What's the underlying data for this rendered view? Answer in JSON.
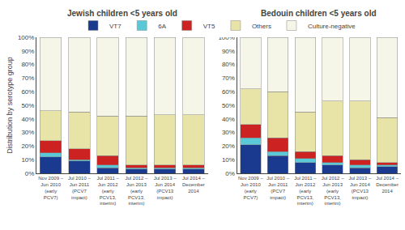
{
  "chart_data": [
    {
      "type": "bar",
      "stacked": true,
      "grid": false,
      "title": "Jewish children <5 years old",
      "ylabel": "Distribution by serotype group",
      "categories": [
        "Nov 2009 –\nJun 2010\n(early\nPCV7)",
        "Jul 2010 –\nJun 2011\n(PCV7\nimpact)",
        "Jul 2011 –\nJun 2012\n(early\nPCV13,\ninterim)",
        "Jul 2012 –\nJun 2013\n(early\nPCV13,\ninterim)",
        "Jul 2013 –\nJun 2014\n(PCV13\nimpact)",
        "Jul 2014 –\nDecember\n2014"
      ],
      "series": [
        {
          "name": "VT7",
          "color": "#1a3a8f",
          "values": [
            12,
            9,
            4,
            3,
            3,
            3
          ]
        },
        {
          "name": "6A",
          "color": "#5bc8d8",
          "values": [
            3,
            1,
            2,
            1,
            1,
            1
          ]
        },
        {
          "name": "VT5",
          "color": "#cc2222",
          "values": [
            9,
            8,
            7,
            2,
            2,
            2
          ]
        },
        {
          "name": "Others",
          "color": "#e8e4a8",
          "values": [
            22,
            27,
            29,
            36,
            37,
            37
          ]
        },
        {
          "name": "Culture-negative",
          "color": "#f5f5e8",
          "values": [
            54,
            55,
            58,
            58,
            57,
            57
          ]
        }
      ],
      "ylim": [
        0,
        100
      ],
      "yticks": [
        {
          "value": 0,
          "label": "0%"
        },
        {
          "value": 10,
          "label": "10%"
        },
        {
          "value": 20,
          "label": "20%"
        },
        {
          "value": 30,
          "label": "30%"
        },
        {
          "value": 40,
          "label": "40%"
        },
        {
          "value": 50,
          "label": "50%"
        },
        {
          "value": 60,
          "label": "60%"
        },
        {
          "value": 70,
          "label": "70%"
        },
        {
          "value": 80,
          "label": "80%"
        },
        {
          "value": 90,
          "label": "90%"
        },
        {
          "value": 100,
          "label": "100%"
        }
      ]
    },
    {
      "type": "bar",
      "stacked": true,
      "grid": false,
      "title": "Bedouin children <5 years old",
      "categories": [
        "Nov 2009 –\nJun 2010\n(early\nPCV7)",
        "Jul 2010 –\nJun 2011\n(PCV7\nimpact)",
        "Jul 2011 –\nJun 2012\n(early\nPCV13,\ninterim)",
        "Jul 2012 –\nJun 2013\n(early\nPCV13,\ninterim)",
        "Jul 2013 –\nJun 2014\n(PCV13\nimpact)",
        "Jul 2014 –\nDecember\n2014"
      ],
      "series": [
        {
          "name": "VT7",
          "color": "#1a3a8f",
          "values": [
            21,
            13,
            8,
            6,
            4,
            5
          ]
        },
        {
          "name": "6A",
          "color": "#5bc8d8",
          "values": [
            5,
            3,
            3,
            2,
            2,
            1
          ]
        },
        {
          "name": "VT5",
          "color": "#cc2222",
          "values": [
            10,
            10,
            5,
            5,
            4,
            2
          ]
        },
        {
          "name": "Others",
          "color": "#e8e4a8",
          "values": [
            26,
            34,
            29,
            40,
            43,
            33
          ]
        },
        {
          "name": "Culture-negative",
          "color": "#f5f5e8",
          "values": [
            38,
            40,
            55,
            47,
            47,
            59
          ]
        }
      ],
      "ylim": [
        0,
        100
      ],
      "yticks": [
        {
          "value": 0,
          "label": "0%"
        },
        {
          "value": 10,
          "label": "10%"
        },
        {
          "value": 20,
          "label": "20%"
        },
        {
          "value": 30,
          "label": "30%"
        },
        {
          "value": 40,
          "label": "40%"
        },
        {
          "value": 50,
          "label": "50%"
        },
        {
          "value": 60,
          "label": "60%"
        },
        {
          "value": 70,
          "label": "70%"
        },
        {
          "value": 80,
          "label": "80%"
        },
        {
          "value": 90,
          "label": "90%"
        },
        {
          "value": 100,
          "label": "100%"
        }
      ]
    }
  ]
}
